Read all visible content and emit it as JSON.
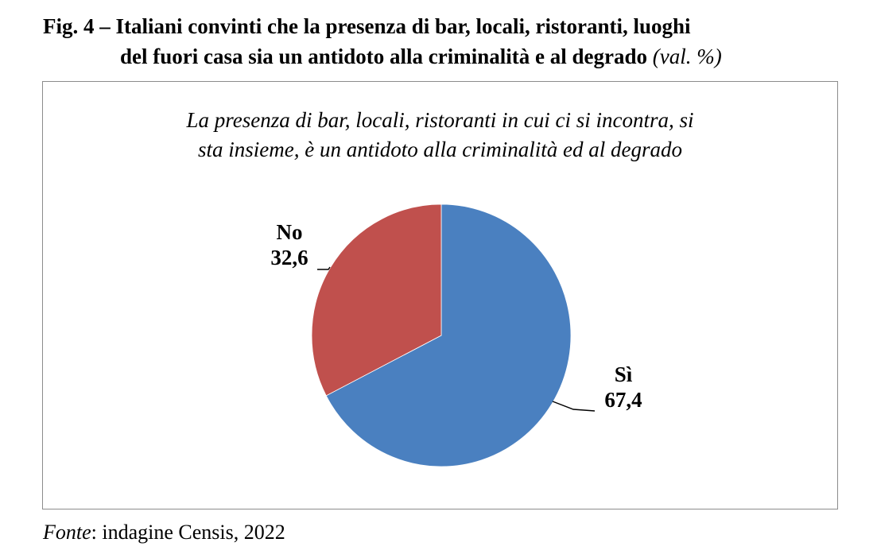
{
  "figure": {
    "title_line1": "Fig. 4 – Italiani convinti che la presenza di bar, locali, ristoranti, luoghi",
    "title_line2": "del fuori casa sia un antidoto alla criminalità e al degrado",
    "unit": "(val. %)"
  },
  "chart_data": {
    "type": "pie",
    "subtitle_line1": "La presenza di bar, locali, ristoranti in cui ci si incontra, si",
    "subtitle_line2": "sta insieme, è un antidoto alla criminalità ed al degrado",
    "slices": [
      {
        "label": "Sì",
        "value": 67.4,
        "value_text": "67,4",
        "color": "#4a80c0"
      },
      {
        "label": "No",
        "value": 32.6,
        "value_text": "32,6",
        "color": "#c0504d"
      }
    ]
  },
  "source": {
    "prefix": "Fonte",
    "text": ": indagine Censis, 2022"
  }
}
